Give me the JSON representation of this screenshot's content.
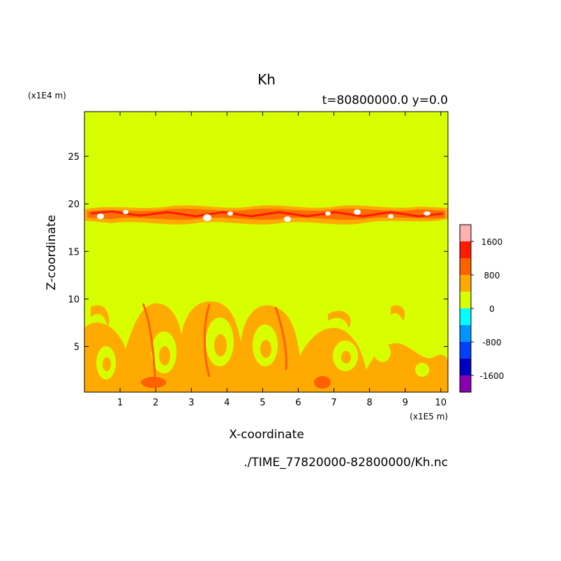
{
  "chart_data": {
    "type": "heatmap",
    "title": "Kh",
    "subtitle": "t=80800000.0 y=0.0",
    "xlabel": "X-coordinate",
    "ylabel": "Z-coordinate",
    "x_unit": "(x1E5 m)",
    "y_unit": "(x1E4 m)",
    "source": "./TIME_77820000-82800000/Kh.nc",
    "xlim": [
      0,
      10.2
    ],
    "ylim": [
      0.2,
      29.7
    ],
    "x_ticks": [
      1,
      2,
      3,
      4,
      5,
      6,
      7,
      8,
      9,
      10
    ],
    "y_ticks": [
      5,
      10,
      15,
      20,
      25
    ],
    "background_level": "0 to 400",
    "colorbar": {
      "levels": [
        {
          "min": 1600,
          "max": null,
          "color": "#ffb0b0"
        },
        {
          "min": 1200,
          "max": 1600,
          "color": "#ff1a00"
        },
        {
          "min": 800,
          "max": 1200,
          "color": "#ff6000"
        },
        {
          "min": 400,
          "max": 800,
          "color": "#ffaa00"
        },
        {
          "min": 0,
          "max": 400,
          "color": "#d8ff00"
        },
        {
          "min": -400,
          "max": 0,
          "color": "#00ffff"
        },
        {
          "min": -800,
          "max": -400,
          "color": "#0095ff"
        },
        {
          "min": -1200,
          "max": -800,
          "color": "#0040ff"
        },
        {
          "min": -1600,
          "max": -1200,
          "color": "#0000c0"
        },
        {
          "min": null,
          "max": -1600,
          "color": "#8800b0"
        }
      ],
      "tick_labels": [
        "1600",
        "800",
        "0",
        "-800",
        "-1600"
      ]
    }
  }
}
